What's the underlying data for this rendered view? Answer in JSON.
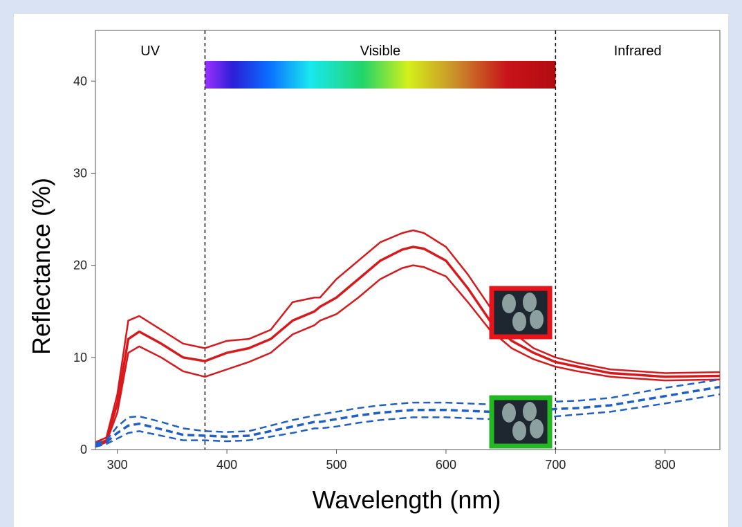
{
  "chart_data": {
    "type": "line",
    "x_label": "Wavelength (nm)",
    "y_label": "Reflectance (%)",
    "annotations": [
      "UV",
      "Visible",
      "Infrared"
    ],
    "region_bounds": [
      380,
      700
    ],
    "xlim": [
      280,
      850
    ],
    "xticks": [
      300,
      400,
      500,
      600,
      700,
      800
    ],
    "ylim": [
      0,
      45.5
    ],
    "yticks": [
      0,
      10,
      20,
      30,
      40
    ],
    "x": [
      280,
      290,
      300,
      310,
      320,
      340,
      360,
      380,
      400,
      420,
      440,
      460,
      480,
      485,
      500,
      520,
      540,
      560,
      570,
      580,
      600,
      620,
      640,
      660,
      680,
      700,
      720,
      750,
      800,
      850
    ],
    "series": [
      {
        "color": "#d7191c",
        "dashed": false,
        "values": [
          0.8,
          1.3,
          6,
          14,
          14.5,
          13,
          11.5,
          11,
          11.8,
          12,
          13,
          16,
          16.5,
          16.5,
          18.5,
          20.5,
          22.5,
          23.5,
          23.8,
          23.5,
          22,
          19,
          15.5,
          12.8,
          11,
          10,
          9.4,
          8.7,
          8.3,
          8.4
        ]
      },
      {
        "color": "#d7191c",
        "dashed": false,
        "values": [
          0.5,
          1,
          5,
          12,
          12.8,
          11.5,
          10,
          9.6,
          10.5,
          11,
          12,
          14,
          15,
          15.5,
          16.5,
          18.5,
          20.5,
          21.7,
          22,
          21.8,
          20.5,
          17.5,
          14,
          11.8,
          10.5,
          9.5,
          9,
          8.3,
          7.9,
          8
        ]
      },
      {
        "color": "#d7191c",
        "dashed": false,
        "values": [
          0.3,
          0.8,
          4,
          10.5,
          11.2,
          10,
          8.5,
          7.9,
          8.7,
          9.5,
          10.5,
          12.5,
          13.5,
          14,
          14.7,
          16.5,
          18.5,
          19.7,
          20,
          19.8,
          18.8,
          16,
          13,
          11,
          9.8,
          9,
          8.5,
          7.9,
          7.5,
          7.6
        ]
      },
      {
        "color": "#1f5fc8",
        "dashed": true,
        "values": [
          0.7,
          1,
          2.5,
          3.5,
          3.6,
          3,
          2.3,
          2,
          1.9,
          2,
          2.6,
          3.2,
          3.7,
          3.8,
          4.1,
          4.5,
          4.8,
          5,
          5.1,
          5.1,
          5.1,
          5,
          4.9,
          4.9,
          5,
          5.2,
          5.3,
          5.6,
          6.7,
          7.6
        ]
      },
      {
        "color": "#1f5fc8",
        "dashed": true,
        "values": [
          0.5,
          0.8,
          1.8,
          2.6,
          2.8,
          2.2,
          1.6,
          1.5,
          1.4,
          1.5,
          2,
          2.5,
          3,
          3,
          3.3,
          3.7,
          4,
          4.2,
          4.3,
          4.3,
          4.3,
          4.2,
          4.1,
          4.1,
          4.2,
          4.4,
          4.5,
          4.8,
          5.8,
          6.8
        ]
      },
      {
        "color": "#1f5fc8",
        "dashed": true,
        "values": [
          0.3,
          0.6,
          1.2,
          1.8,
          2,
          1.5,
          1,
          1,
          0.9,
          1,
          1.4,
          1.8,
          2.3,
          2.3,
          2.5,
          2.9,
          3.2,
          3.4,
          3.5,
          3.5,
          3.5,
          3.4,
          3.3,
          3.3,
          3.4,
          3.6,
          3.8,
          4.1,
          5,
          6
        ]
      }
    ]
  }
}
